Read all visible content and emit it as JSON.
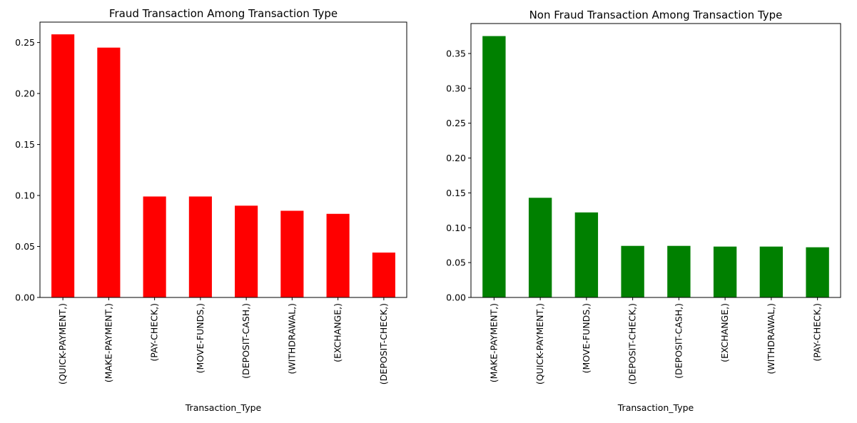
{
  "chart_data": [
    {
      "type": "bar",
      "title": "Fraud Transaction Among Transaction Type",
      "xlabel": "Transaction_Type",
      "ylabel": "",
      "ylim": [
        0,
        0.27
      ],
      "yticks": [
        "0.00",
        "0.05",
        "0.10",
        "0.15",
        "0.20",
        "0.25"
      ],
      "color": "#ff0000",
      "grid": false,
      "categories": [
        "(QUICK-PAYMENT,)",
        "(MAKE-PAYMENT,)",
        "(PAY-CHECK,)",
        "(MOVE-FUNDS,)",
        "(DEPOSIT-CASH,)",
        "(WITHDRAWAL,)",
        "(EXCHANGE,)",
        "(DEPOSIT-CHECK,)"
      ],
      "values": [
        0.258,
        0.245,
        0.099,
        0.099,
        0.09,
        0.085,
        0.082,
        0.044
      ]
    },
    {
      "type": "bar",
      "title": "Non Fraud Transaction Among Transaction Type",
      "xlabel": "Transaction_Type",
      "ylabel": "",
      "ylim": [
        0,
        0.393
      ],
      "yticks": [
        "0.00",
        "0.05",
        "0.10",
        "0.15",
        "0.20",
        "0.25",
        "0.30",
        "0.35"
      ],
      "color": "#008000",
      "grid": false,
      "categories": [
        "(MAKE-PAYMENT,)",
        "(QUICK-PAYMENT,)",
        "(MOVE-FUNDS,)",
        "(DEPOSIT-CHECK,)",
        "(DEPOSIT-CASH,)",
        "(EXCHANGE,)",
        "(WITHDRAWAL,)",
        "(PAY-CHECK,)"
      ],
      "values": [
        0.375,
        0.143,
        0.122,
        0.074,
        0.074,
        0.073,
        0.073,
        0.072
      ]
    }
  ]
}
